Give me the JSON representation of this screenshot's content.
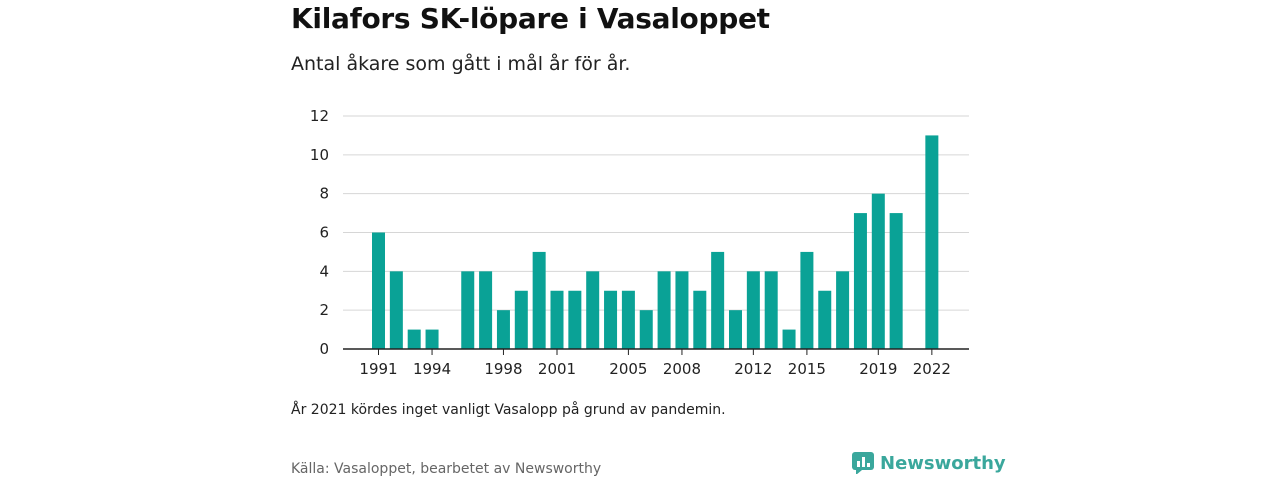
{
  "title": "Kilafors SK-löpare i Vasaloppet",
  "subtitle": "Antal åkare som gått i mål år för år.",
  "note": "År 2021 kördes inget vanligt Vasalopp på grund av pandemin.",
  "source": "Källa: Vasaloppet, bearbetet av Newsworthy",
  "brand": {
    "name": "Newsworthy",
    "icon": "newsworthy-logo-icon"
  },
  "colors": {
    "bar": "#0aa296",
    "grid": "#d6d6d6",
    "axis": "#222222",
    "brand": "#3aa79c"
  },
  "chart_data": {
    "type": "bar",
    "title": "Kilafors SK-löpare i Vasaloppet",
    "subtitle": "Antal åkare som gått i mål år för år.",
    "xlabel": "",
    "ylabel": "",
    "categories": [
      1991,
      1992,
      1993,
      1994,
      1995,
      1996,
      1997,
      1998,
      1999,
      2000,
      2001,
      2002,
      2003,
      2004,
      2005,
      2006,
      2007,
      2008,
      2009,
      2010,
      2011,
      2012,
      2013,
      2014,
      2015,
      2016,
      2017,
      2018,
      2019,
      2020,
      2021,
      2022
    ],
    "values": [
      6,
      4,
      1,
      1,
      null,
      4,
      4,
      2,
      3,
      5,
      3,
      3,
      4,
      3,
      3,
      2,
      4,
      4,
      3,
      5,
      2,
      4,
      4,
      1,
      5,
      3,
      4,
      7,
      8,
      7,
      null,
      11
    ],
    "x_tick_labels": [
      "1991",
      "1994",
      "1998",
      "2001",
      "2005",
      "2008",
      "2012",
      "2015",
      "2019",
      "2022"
    ],
    "ylim": [
      0,
      12
    ],
    "y_ticks": [
      0,
      2,
      4,
      6,
      8,
      10,
      12
    ],
    "grid": true,
    "legend": "none"
  }
}
